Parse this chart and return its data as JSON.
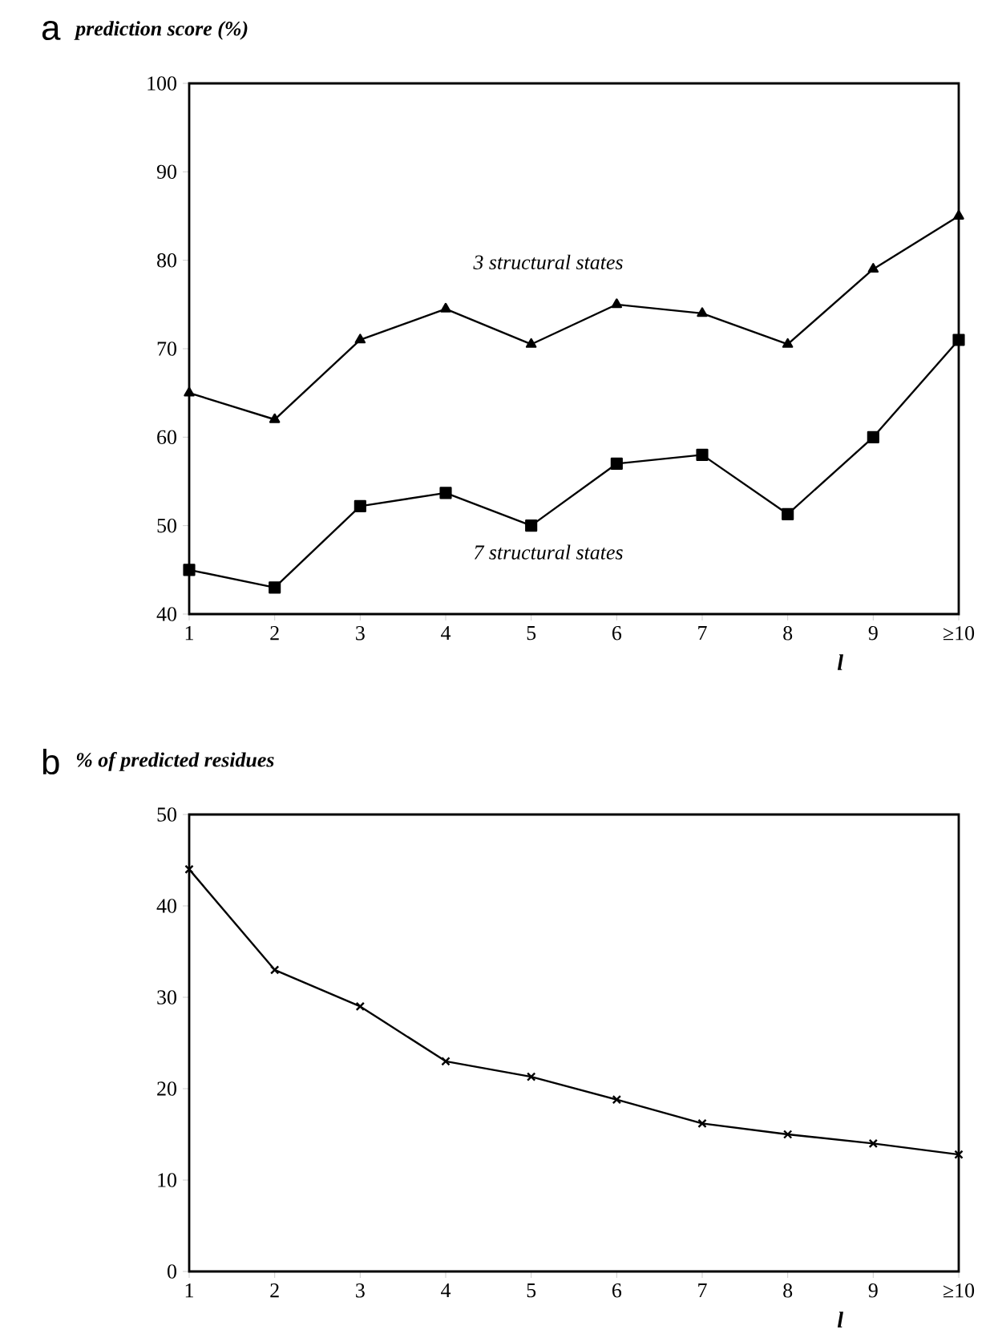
{
  "chart_data": [
    {
      "type": "line",
      "title": "a",
      "ylabel": "prediction score (%)",
      "xlabel": "l",
      "categories": [
        "1",
        "2",
        "3",
        "4",
        "5",
        "6",
        "7",
        "8",
        "9",
        "≥10"
      ],
      "ylim": [
        40,
        100
      ],
      "yticks": [
        40,
        50,
        60,
        70,
        80,
        90,
        100
      ],
      "series": [
        {
          "name": "3 structural states",
          "color": "#000000",
          "marker": "triangle",
          "values": [
            65,
            62,
            71,
            74.5,
            70.5,
            75,
            74,
            70.5,
            79,
            85
          ]
        },
        {
          "name": "7 structural states",
          "color": "#000000",
          "marker": "square",
          "values": [
            45,
            43,
            52.2,
            53.7,
            50,
            57,
            58,
            51.3,
            60,
            71
          ]
        }
      ]
    },
    {
      "type": "line",
      "title": "b",
      "ylabel": "% of predicted residues",
      "xlabel": "l",
      "categories": [
        "1",
        "2",
        "3",
        "4",
        "5",
        "6",
        "7",
        "8",
        "9",
        "≥10"
      ],
      "ylim": [
        0,
        50
      ],
      "yticks": [
        0,
        10,
        20,
        30,
        40,
        50
      ],
      "series": [
        {
          "color": "#000000",
          "marker": "cross",
          "values": [
            44,
            33,
            29,
            23,
            21.3,
            18.8,
            16.2,
            15,
            14,
            12.8
          ]
        }
      ]
    }
  ]
}
